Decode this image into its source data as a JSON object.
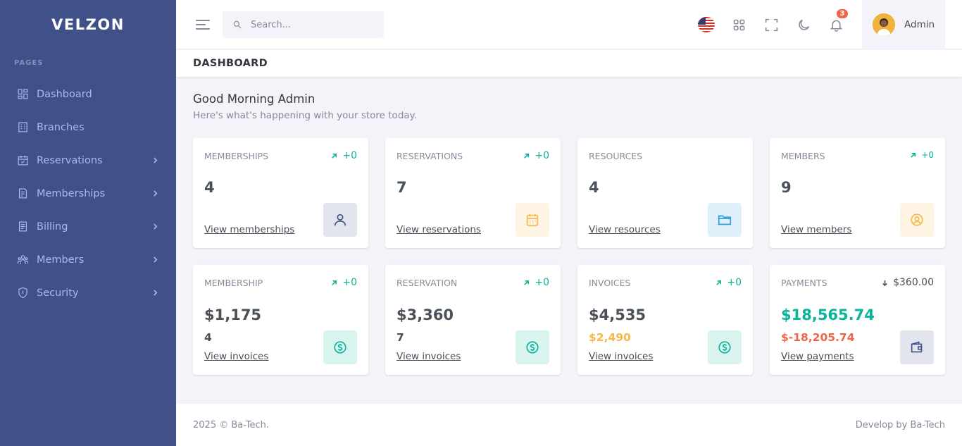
{
  "brand": {
    "logo_text": "velzon"
  },
  "sidebar": {
    "menu_title": "PAGES",
    "items": [
      {
        "label": "Dashboard",
        "icon": "dashboard-icon",
        "has_children": false
      },
      {
        "label": "Branches",
        "icon": "building-icon",
        "has_children": false
      },
      {
        "label": "Reservations",
        "icon": "calendar-check-icon",
        "has_children": true
      },
      {
        "label": "Memberships",
        "icon": "file-list-icon",
        "has_children": true
      },
      {
        "label": "Billing",
        "icon": "bill-icon",
        "has_children": true
      },
      {
        "label": "Members",
        "icon": "team-icon",
        "has_children": true
      },
      {
        "label": "Security",
        "icon": "shield-icon",
        "has_children": true
      }
    ]
  },
  "topbar": {
    "search_placeholder": "Search...",
    "notification_count": "3",
    "user_name": "Admin",
    "icons": [
      "hamburger-icon",
      "search-icon",
      "us-flag-icon",
      "apps-grid-icon",
      "fullscreen-icon",
      "moon-icon",
      "bell-icon"
    ]
  },
  "page": {
    "title": "DASHBOARD",
    "greeting": "Good Morning Admin",
    "subtitle": "Here's what's happening with your store today."
  },
  "stats_row1": [
    {
      "title": "MEMBERSHIPS",
      "trend": "+0",
      "value": "4",
      "link": "View memberships",
      "icon": "user-icon",
      "icon_bg": "#e2e5ed",
      "icon_color": "#405189"
    },
    {
      "title": "RESERVATIONS",
      "trend": "+0",
      "value": "7",
      "link": "View reservations",
      "icon": "calendar-icon",
      "icon_bg": "#fef4e4",
      "icon_color": "#f7b84b"
    },
    {
      "title": "RESOURCES",
      "trend": "+0",
      "value": "4",
      "link": "View resources",
      "icon": "folder-icon",
      "icon_bg": "#dff0fa",
      "icon_color": "#299cdb"
    },
    {
      "title": "MEMBERS",
      "trend": "+0",
      "value": "9",
      "link": "View members",
      "icon": "user-circle-icon",
      "icon_bg": "#fef4e4",
      "icon_color": "#f7b84b"
    }
  ],
  "stats_row2": [
    {
      "title": "MEMBERSHIP",
      "trend": "+0",
      "value": "$1,175",
      "sub": "4",
      "link": "View invoices",
      "icon": "dollar-circle-icon",
      "icon_bg": "#daf4f0",
      "icon_color": "#0ab39c"
    },
    {
      "title": "RESERVATION",
      "trend": "+0",
      "value": "$3,360",
      "sub": "7",
      "link": "View invoices",
      "icon": "dollar-circle-icon",
      "icon_bg": "#daf4f0",
      "icon_color": "#0ab39c"
    },
    {
      "title": "INVOICES",
      "trend": "+0",
      "value": "$4,535",
      "sub": "$2,490",
      "link": "View invoices",
      "icon": "dollar-circle-icon",
      "icon_bg": "#daf4f0",
      "icon_color": "#0ab39c"
    },
    {
      "title": "PAYMENTS",
      "trend": "$360.00",
      "value": "$18,565.74",
      "sub": "$-18,205.74",
      "link": "View payments",
      "icon": "wallet-icon",
      "icon_bg": "#e2e5ed",
      "icon_color": "#405189"
    }
  ],
  "colors": {
    "sidebar_bg": "#405189",
    "success": "#0ab39c",
    "warning": "#f7b84b",
    "danger": "#f06548"
  },
  "footer": {
    "left": "2025 © Ba-Tech.",
    "right": "Develop by Ba-Tech"
  }
}
